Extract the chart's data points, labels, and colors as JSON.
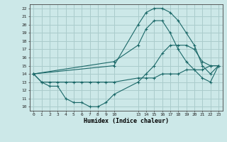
{
  "xlabel": "Humidex (Indice chaleur)",
  "ylabel": "",
  "background_color": "#cce8e8",
  "grid_color": "#aacccc",
  "line_color": "#1a6868",
  "ylim": [
    9.5,
    22.5
  ],
  "xlim": [
    -0.5,
    23.5
  ],
  "yticks": [
    10,
    11,
    12,
    13,
    14,
    15,
    16,
    17,
    18,
    19,
    20,
    21,
    22
  ],
  "xticks": [
    0,
    1,
    2,
    3,
    4,
    5,
    6,
    7,
    8,
    9,
    10,
    13,
    14,
    15,
    16,
    17,
    18,
    19,
    20,
    21,
    22,
    23
  ],
  "line1_x": [
    0,
    1,
    2,
    3,
    4,
    5,
    6,
    7,
    8,
    9,
    10,
    13,
    14,
    15,
    16,
    17,
    18,
    19,
    20,
    21,
    22,
    23
  ],
  "line1_y": [
    14,
    13,
    12.5,
    12.5,
    11,
    10.5,
    10.5,
    10,
    10,
    10.5,
    11.5,
    13,
    14,
    15,
    16.5,
    17.5,
    17.5,
    17.5,
    17,
    15.5,
    15,
    15
  ],
  "line2_x": [
    0,
    10,
    13,
    14,
    15,
    16,
    17,
    18,
    19,
    20,
    21,
    22,
    23
  ],
  "line2_y": [
    14,
    15.5,
    17.5,
    19.5,
    20.5,
    20.5,
    19,
    17,
    15.5,
    14.5,
    13.5,
    13,
    15
  ],
  "line3_x": [
    0,
    10,
    13,
    14,
    15,
    16,
    17,
    18,
    19,
    20,
    21,
    22,
    23
  ],
  "line3_y": [
    14,
    15,
    20,
    21.5,
    22,
    22,
    21.5,
    20.5,
    19,
    17.5,
    15,
    14,
    15
  ],
  "line4_x": [
    0,
    1,
    2,
    3,
    4,
    5,
    6,
    7,
    8,
    9,
    10,
    13,
    14,
    15,
    16,
    17,
    18,
    19,
    20,
    21,
    22,
    23
  ],
  "line4_y": [
    14,
    13,
    13,
    13,
    13,
    13,
    13,
    13,
    13,
    13,
    13,
    13.5,
    13.5,
    13.5,
    14,
    14,
    14,
    14.5,
    14.5,
    14.5,
    15,
    15
  ]
}
